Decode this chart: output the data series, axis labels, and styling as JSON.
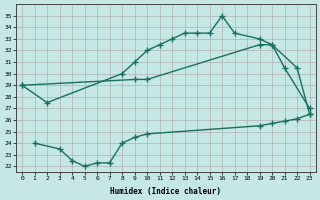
{
  "xlabel": "Humidex (Indice chaleur)",
  "background_color": "#c5e8e5",
  "grid_color": "#b0b0b0",
  "line_color": "#1a7060",
  "ylim": [
    21.5,
    36
  ],
  "xlim": [
    -0.5,
    23.5
  ],
  "yticks": [
    22,
    23,
    24,
    25,
    26,
    27,
    28,
    29,
    30,
    31,
    32,
    33,
    34,
    35
  ],
  "xticks": [
    0,
    1,
    2,
    3,
    4,
    5,
    6,
    7,
    8,
    9,
    10,
    11,
    12,
    13,
    14,
    15,
    16,
    17,
    18,
    19,
    20,
    21,
    22,
    23
  ],
  "l1_x": [
    0,
    2,
    8,
    9,
    10,
    11,
    12,
    13,
    14,
    15,
    16,
    17,
    19,
    20,
    21,
    23
  ],
  "l1_y": [
    29,
    27.5,
    30.0,
    31.0,
    32.0,
    32.5,
    33.0,
    33.5,
    33.5,
    33.5,
    35.0,
    33.5,
    33.0,
    32.5,
    30.5,
    27.0
  ],
  "l2_x": [
    0,
    9,
    10,
    19,
    20,
    22,
    23
  ],
  "l2_y": [
    29,
    29.5,
    29.5,
    32.5,
    32.5,
    30.5,
    26.5
  ],
  "l3_x": [
    1,
    3,
    4,
    5,
    6,
    7,
    8,
    9,
    10,
    19,
    20,
    21,
    22,
    23
  ],
  "l3_y": [
    24,
    23.5,
    22.5,
    22.0,
    22.3,
    22.3,
    24.0,
    24.5,
    24.8,
    25.5,
    25.7,
    25.9,
    26.1,
    26.5
  ]
}
